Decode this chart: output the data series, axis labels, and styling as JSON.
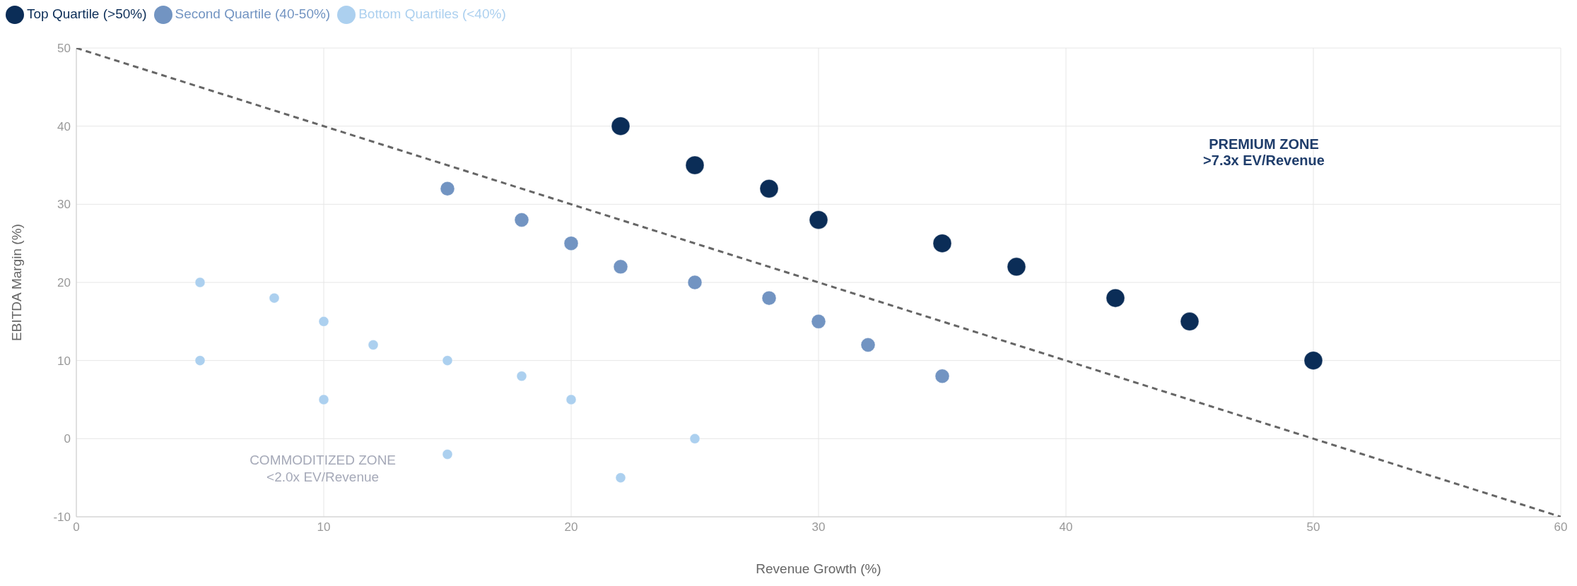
{
  "chart_data": {
    "type": "scatter",
    "xlabel": "Revenue Growth (%)",
    "ylabel": "EBITDA Margin (%)",
    "xlim": [
      0,
      60
    ],
    "xticks": [
      0,
      10,
      20,
      30,
      40,
      50,
      60
    ],
    "ylim": [
      -10,
      50
    ],
    "yticks": [
      -10,
      0,
      10,
      20,
      30,
      40,
      50
    ],
    "grid": true,
    "legend": "top left",
    "marker": "circle",
    "series": [
      {
        "name": "Top Quartile (>50%)",
        "color": "#0b2d57",
        "x": [
          22,
          25,
          28,
          30,
          35,
          38,
          42,
          45,
          50
        ],
        "values": [
          40,
          35,
          32,
          28,
          25,
          22,
          18,
          15,
          10
        ]
      },
      {
        "name": "Second Quartile (40-50%)",
        "color": "#7294c2",
        "x": [
          15,
          18,
          20,
          22,
          25,
          28,
          30,
          32,
          35
        ],
        "values": [
          32,
          28,
          25,
          22,
          20,
          18,
          15,
          12,
          8
        ]
      },
      {
        "name": "Bottom Quartiles (<40%)",
        "color": "#acd0ef",
        "x": [
          5,
          5,
          8,
          10,
          10,
          12,
          15,
          15,
          18,
          20,
          22,
          25
        ],
        "values": [
          20,
          10,
          18,
          15,
          5,
          12,
          10,
          -2,
          8,
          5,
          -5,
          0
        ]
      },
      {
        "type": "line",
        "color": "#666666",
        "line_style": "dashed",
        "marker": "none",
        "x": [
          0,
          60
        ],
        "values": [
          50,
          -10
        ]
      }
    ],
    "annotations": [
      "PREMIUM ZONE",
      ">7.3x EV/Revenue",
      "COMMODITIZED ZONE",
      "<2.0x EV/Revenue"
    ]
  }
}
